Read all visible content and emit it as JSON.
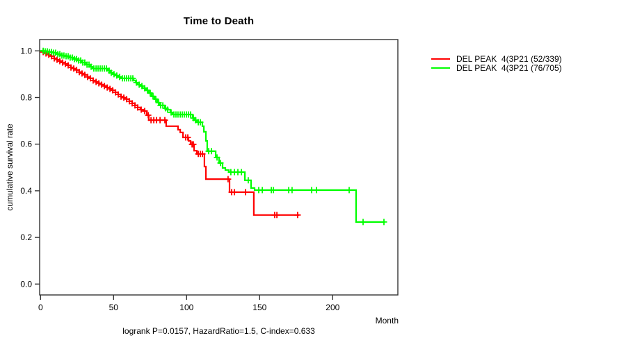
{
  "title": "Time to Death",
  "annotation": "logrank P=0.0157, HazardRatio=1.5, C-index=0.633",
  "colors": {
    "axis": "#333333",
    "text": "#000000",
    "red_series": "#ff0000",
    "green_series": "#00ff00"
  },
  "axes": {
    "x": {
      "label": "Month",
      "ticks": [
        0,
        50,
        100,
        150,
        200
      ]
    },
    "y": {
      "label": "cumulative survival rate",
      "ticks": [
        0.0,
        0.2,
        0.4,
        0.6,
        0.8,
        1.0
      ]
    }
  },
  "legend": {
    "items": [
      {
        "label": "DEL PEAK  4(3P21 (52/339)",
        "color": "#ff0000"
      },
      {
        "label": "DEL PEAK  4(3P21 (76/705)",
        "color": "#00ff00"
      }
    ]
  },
  "chart_data": {
    "type": "line",
    "subtype": "kaplan-meier-step",
    "title": "Time to Death",
    "xlabel": "Month",
    "ylabel": "cumulative survival rate",
    "xlim": [
      0,
      245
    ],
    "ylim": [
      0,
      1
    ],
    "grid": false,
    "legend_position": "right-outside",
    "stats": {
      "logrank_p": 0.0157,
      "hazard_ratio": 1.5,
      "c_index": 0.633
    },
    "series": [
      {
        "name": "DEL PEAK  4(3P21 (52/339)",
        "color": "#ff0000",
        "end_month": 177,
        "points": [
          [
            0,
            1.0
          ],
          [
            1.8,
            0.995
          ],
          [
            3.7,
            0.989
          ],
          [
            5.6,
            0.983
          ],
          [
            7.5,
            0.977
          ],
          [
            9.4,
            0.968
          ],
          [
            11.3,
            0.962
          ],
          [
            13.2,
            0.956
          ],
          [
            15.1,
            0.95
          ],
          [
            17.0,
            0.944
          ],
          [
            18.9,
            0.938
          ],
          [
            20.8,
            0.929
          ],
          [
            22.7,
            0.924
          ],
          [
            24.6,
            0.918
          ],
          [
            26.5,
            0.909
          ],
          [
            28.4,
            0.903
          ],
          [
            30.3,
            0.897
          ],
          [
            32.2,
            0.888
          ],
          [
            34.1,
            0.882
          ],
          [
            36.0,
            0.873
          ],
          [
            38.0,
            0.867
          ],
          [
            39.9,
            0.861
          ],
          [
            41.8,
            0.855
          ],
          [
            43.7,
            0.849
          ],
          [
            45.6,
            0.843
          ],
          [
            47.5,
            0.837
          ],
          [
            49.4,
            0.831
          ],
          [
            51.3,
            0.822
          ],
          [
            53.2,
            0.813
          ],
          [
            55.1,
            0.804
          ],
          [
            57.0,
            0.799
          ],
          [
            58.9,
            0.793
          ],
          [
            60.8,
            0.784
          ],
          [
            62.7,
            0.775
          ],
          [
            64.6,
            0.766
          ],
          [
            66.5,
            0.757
          ],
          [
            68.4,
            0.748
          ],
          [
            70.3,
            0.742
          ],
          [
            72.7,
            0.724
          ],
          [
            74.1,
            0.703
          ],
          [
            86.0,
            0.677
          ],
          [
            94.1,
            0.662
          ],
          [
            95.6,
            0.65
          ],
          [
            97.5,
            0.629
          ],
          [
            101.3,
            0.614
          ],
          [
            102.7,
            0.599
          ],
          [
            105.1,
            0.572
          ],
          [
            107.0,
            0.558
          ],
          [
            112.2,
            0.504
          ],
          [
            113.2,
            0.45
          ],
          [
            129.4,
            0.394
          ],
          [
            146.0,
            0.296
          ]
        ],
        "censor_months": [
          1.8,
          3.7,
          5.6,
          7.5,
          9.4,
          11.3,
          13.2,
          15.1,
          17.0,
          18.9,
          20.8,
          22.7,
          24.6,
          26.5,
          28.4,
          30.3,
          32.2,
          34.1,
          36.0,
          38.0,
          39.9,
          41.8,
          43.7,
          45.6,
          47.5,
          49.4,
          51.3,
          53.2,
          55.1,
          57.0,
          58.9,
          60.8,
          62.7,
          64.6,
          66.5,
          68.9,
          71.3,
          73.7,
          75.6,
          77.5,
          79.4,
          81.8,
          85.1,
          99.4,
          100.8,
          103.7,
          104.6,
          108.0,
          109.4,
          110.8,
          128.4,
          130.8,
          132.7,
          140.3,
          160.3,
          161.8,
          176.0
        ]
      },
      {
        "name": "DEL PEAK  4(3P21 (76/705)",
        "color": "#00ff00",
        "end_month": 235.6,
        "points": [
          [
            0,
            1.0
          ],
          [
            2.7,
            0.998
          ],
          [
            5.6,
            0.995
          ],
          [
            8.4,
            0.992
          ],
          [
            11.3,
            0.986
          ],
          [
            14.1,
            0.98
          ],
          [
            17.0,
            0.977
          ],
          [
            19.9,
            0.971
          ],
          [
            22.7,
            0.965
          ],
          [
            25.6,
            0.959
          ],
          [
            28.4,
            0.95
          ],
          [
            31.3,
            0.941
          ],
          [
            34.1,
            0.932
          ],
          [
            35.6,
            0.924
          ],
          [
            46.0,
            0.915
          ],
          [
            47.5,
            0.906
          ],
          [
            49.4,
            0.9
          ],
          [
            51.3,
            0.894
          ],
          [
            53.2,
            0.888
          ],
          [
            55.1,
            0.882
          ],
          [
            63.7,
            0.873
          ],
          [
            65.1,
            0.864
          ],
          [
            66.5,
            0.855
          ],
          [
            68.4,
            0.849
          ],
          [
            69.9,
            0.84
          ],
          [
            72.2,
            0.831
          ],
          [
            74.1,
            0.819
          ],
          [
            76.0,
            0.805
          ],
          [
            78.0,
            0.793
          ],
          [
            79.9,
            0.778
          ],
          [
            81.3,
            0.766
          ],
          [
            85.1,
            0.754
          ],
          [
            86.0,
            0.748
          ],
          [
            88.9,
            0.736
          ],
          [
            90.3,
            0.727
          ],
          [
            104.1,
            0.712
          ],
          [
            105.6,
            0.703
          ],
          [
            107.0,
            0.694
          ],
          [
            110.8,
            0.677
          ],
          [
            111.8,
            0.653
          ],
          [
            113.2,
            0.614
          ],
          [
            114.1,
            0.57
          ],
          [
            119.9,
            0.543
          ],
          [
            122.2,
            0.519
          ],
          [
            124.6,
            0.498
          ],
          [
            126.5,
            0.489
          ],
          [
            128.9,
            0.48
          ],
          [
            139.9,
            0.445
          ],
          [
            144.1,
            0.412
          ],
          [
            146.5,
            0.403
          ],
          [
            216.0,
            0.266
          ]
        ],
        "censor_months": [
          1.8,
          3.2,
          4.6,
          6.0,
          7.5,
          8.9,
          10.3,
          11.8,
          13.2,
          14.6,
          16.0,
          17.5,
          18.9,
          20.3,
          21.8,
          23.2,
          24.6,
          26.0,
          27.5,
          28.9,
          30.3,
          31.8,
          33.2,
          34.6,
          36.5,
          38.0,
          39.4,
          40.8,
          42.2,
          43.7,
          45.1,
          47.0,
          48.4,
          50.3,
          52.2,
          54.1,
          56.0,
          57.5,
          58.9,
          60.3,
          61.8,
          63.2,
          65.6,
          67.5,
          69.4,
          71.3,
          73.2,
          75.1,
          77.0,
          78.9,
          80.8,
          82.2,
          83.7,
          85.6,
          87.0,
          89.4,
          91.3,
          92.7,
          94.1,
          95.6,
          97.0,
          98.4,
          99.9,
          101.3,
          102.7,
          104.6,
          106.0,
          108.0,
          109.4,
          115.1,
          117.0,
          120.8,
          123.2,
          130.3,
          132.7,
          135.1,
          137.5,
          142.2,
          149.4,
          151.8,
          158.0,
          159.4,
          169.9,
          172.2,
          185.6,
          188.9,
          211.3,
          220.8,
          235.1
        ]
      }
    ]
  }
}
